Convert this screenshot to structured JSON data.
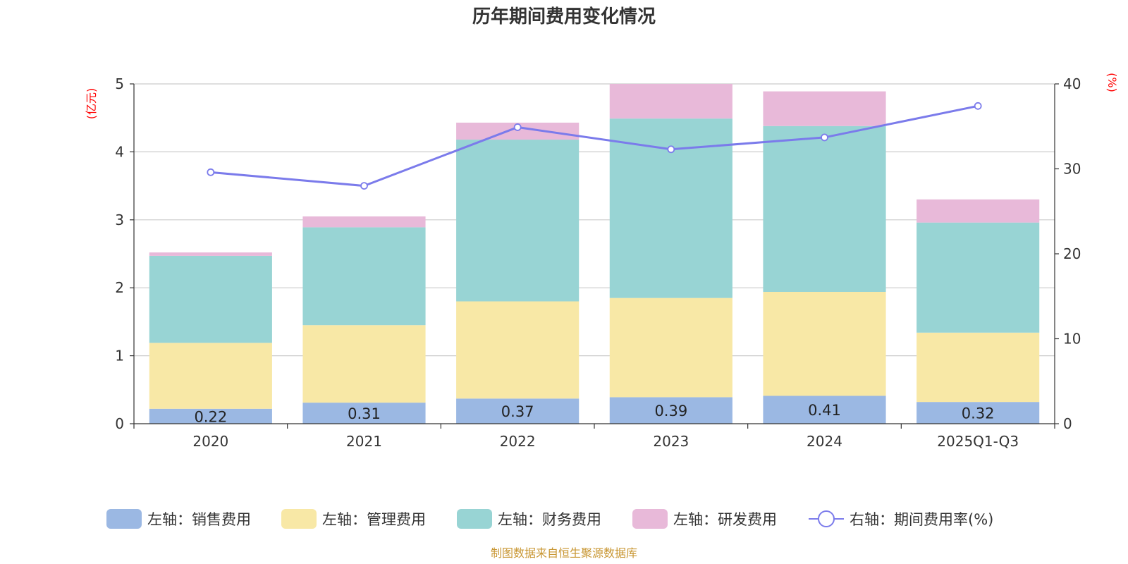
{
  "chart_data": {
    "type": "bar",
    "title": "历年期间费用变化情况",
    "categories": [
      "2020",
      "2021",
      "2022",
      "2023",
      "2024",
      "2025Q1-Q3"
    ],
    "left_axis": {
      "unit": "(亿元)",
      "min": 0,
      "max": 5,
      "ticks": [
        "0",
        "1",
        "2",
        "3",
        "4",
        "5"
      ]
    },
    "right_axis": {
      "unit": "(%)",
      "min": 0,
      "max": 40,
      "ticks": [
        "0",
        "10",
        "20",
        "30",
        "40"
      ]
    },
    "series": [
      {
        "name": "左轴：销售费用",
        "type": "bar",
        "color": "#9bb8e3",
        "values": [
          0.22,
          0.31,
          0.37,
          0.39,
          0.41,
          0.32
        ],
        "labels": [
          "0.22",
          "0.31",
          "0.37",
          "0.39",
          "0.41",
          "0.32"
        ]
      },
      {
        "name": "左轴：管理费用",
        "type": "bar",
        "color": "#f8e8a6",
        "values": [
          0.97,
          1.14,
          1.43,
          1.46,
          1.53,
          1.02
        ]
      },
      {
        "name": "左轴：财务费用",
        "type": "bar",
        "color": "#98d4d4",
        "values": [
          1.28,
          1.44,
          2.38,
          2.64,
          2.44,
          1.62
        ]
      },
      {
        "name": "左轴：研发费用",
        "type": "bar",
        "color": "#e8b9d9",
        "values": [
          0.05,
          0.16,
          0.25,
          0.51,
          0.51,
          0.34
        ]
      },
      {
        "name": "右轴：期间费用率(%)",
        "type": "line",
        "color": "#7b7beb",
        "values": [
          29.6,
          28.0,
          34.9,
          32.3,
          33.7,
          37.4
        ]
      }
    ],
    "grid": true,
    "legend_position": "bottom"
  },
  "source_text": "制图数据来自恒生聚源数据库"
}
